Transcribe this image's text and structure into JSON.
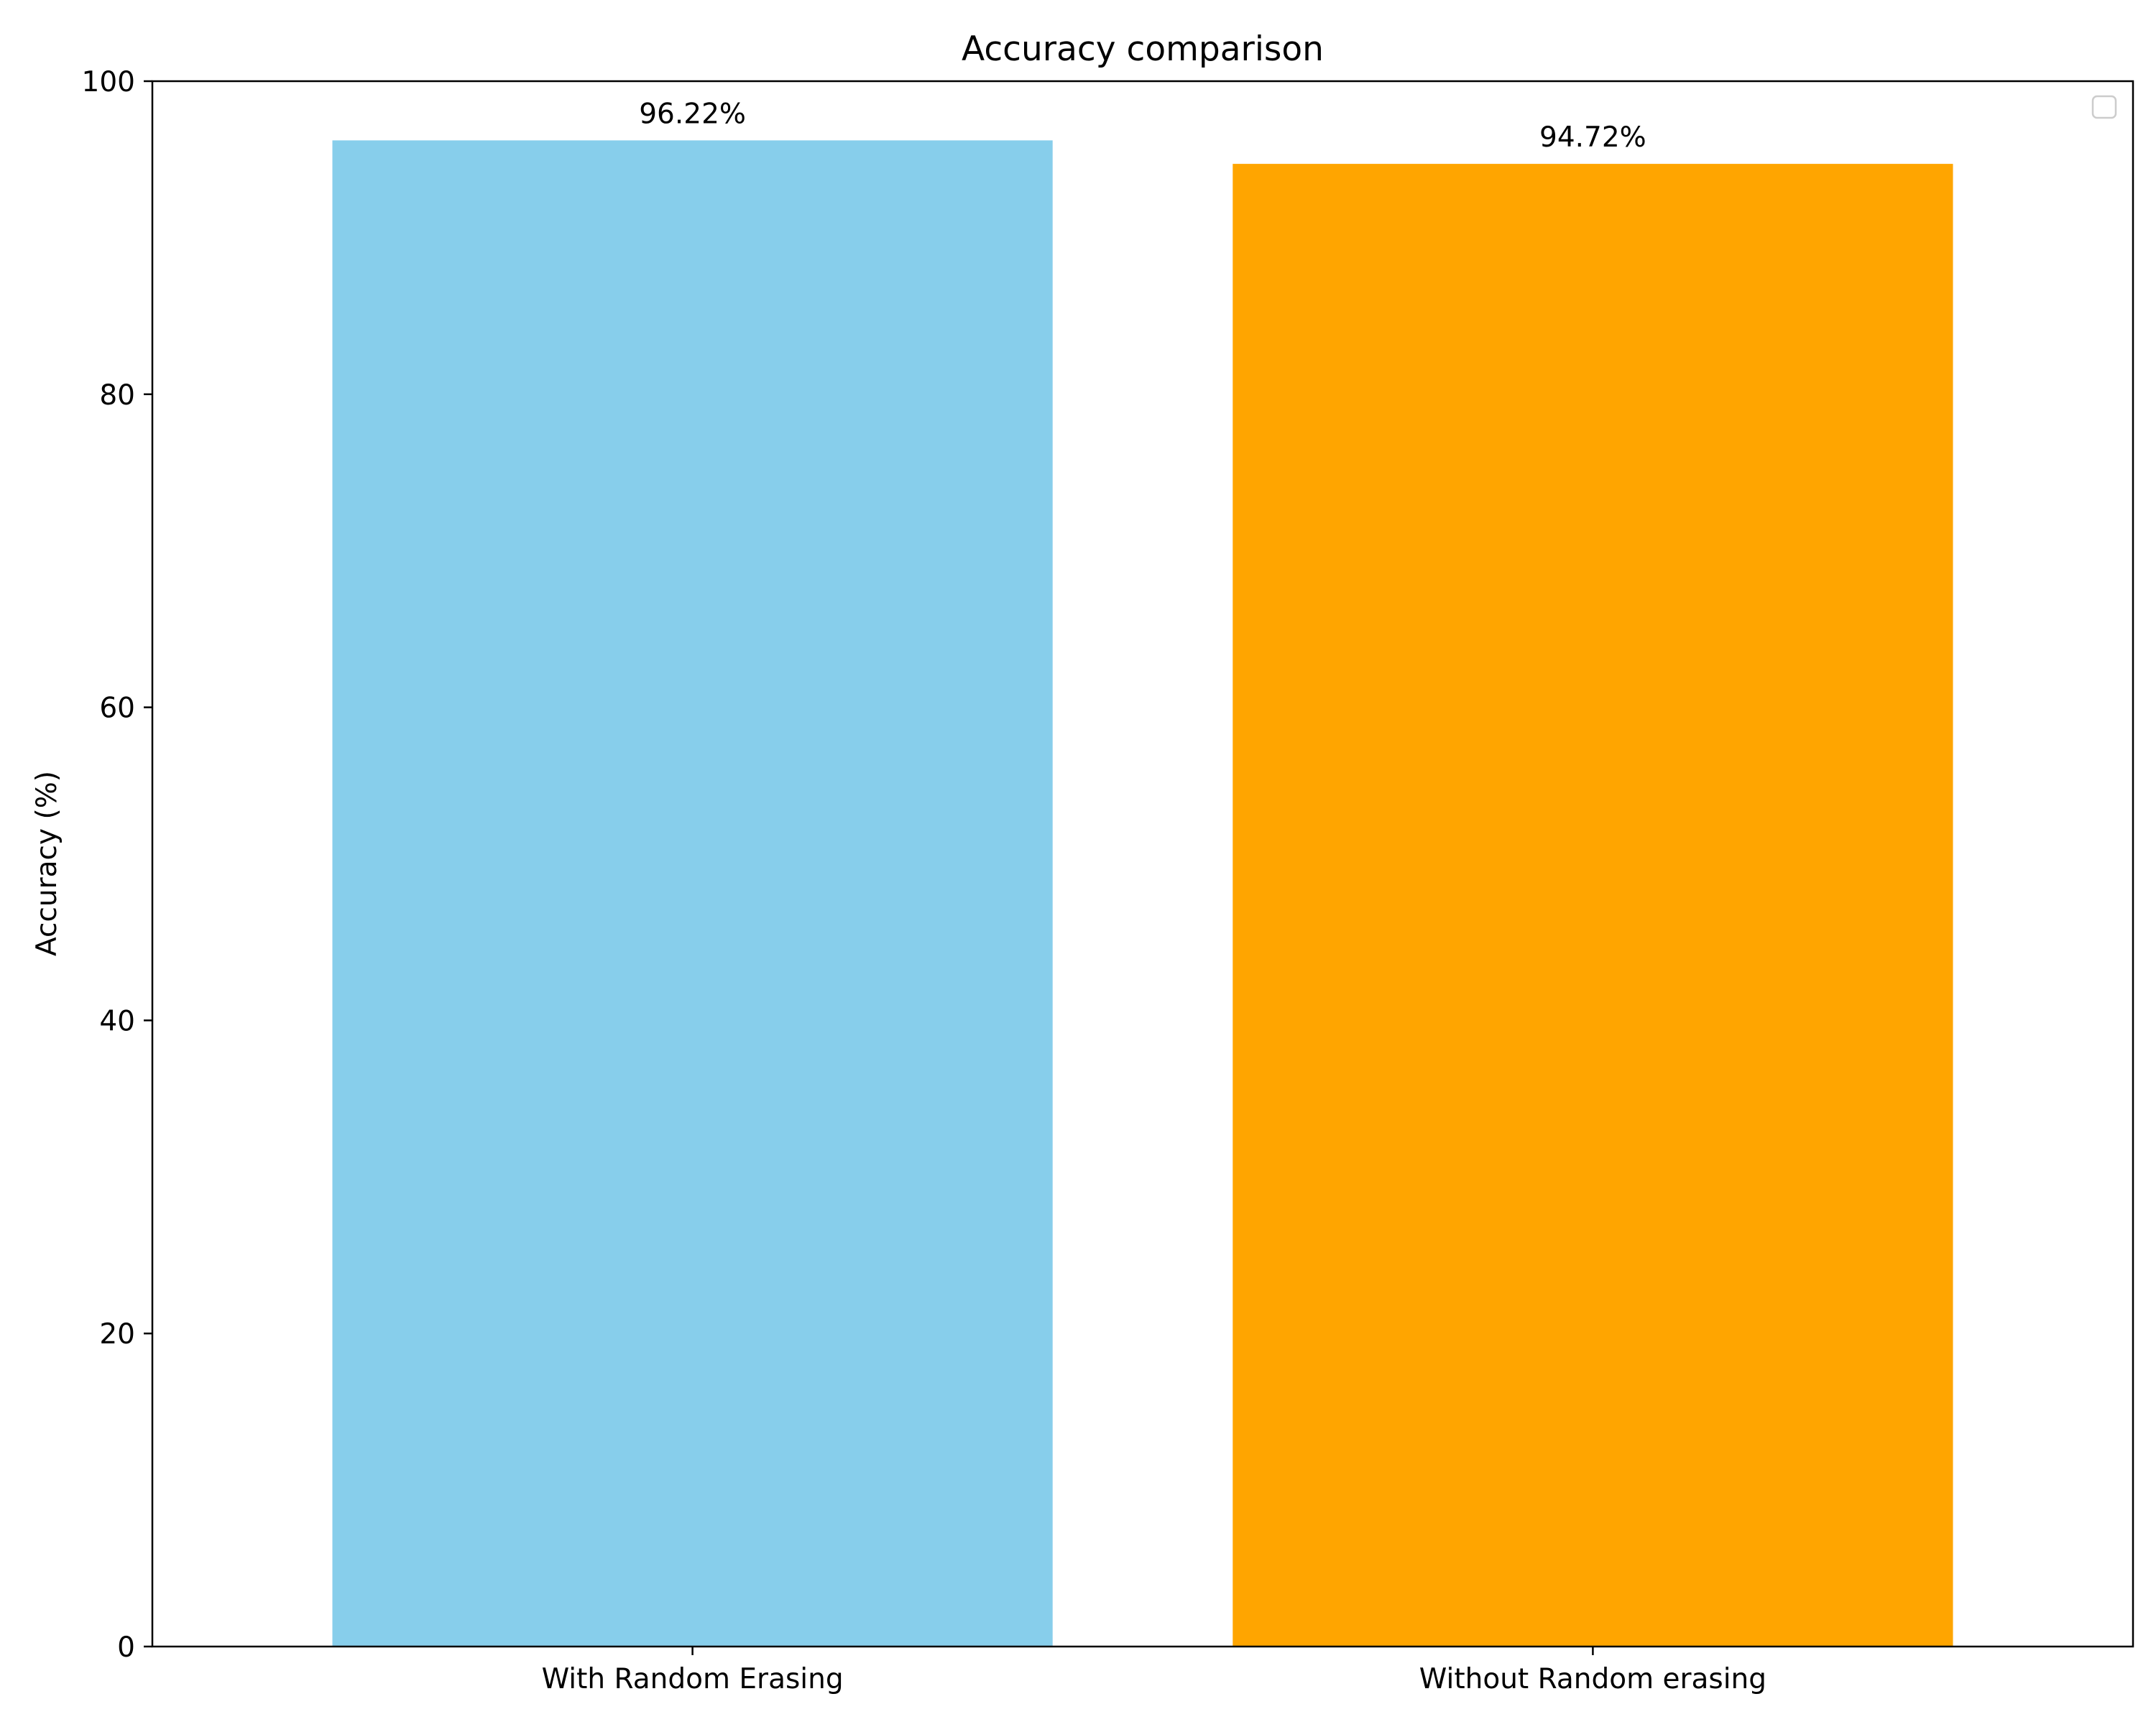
{
  "chart_data": {
    "type": "bar",
    "title": "Accuracy comparison",
    "xlabel": "",
    "ylabel": "Accuracy (%)",
    "ylim": [
      0,
      100
    ],
    "yticks": [
      0,
      20,
      40,
      60,
      80,
      100
    ],
    "categories": [
      "With Random Erasing",
      "Without Random erasing"
    ],
    "values": [
      96.22,
      94.72
    ],
    "value_labels": [
      "96.22%",
      "94.72%"
    ],
    "colors": [
      "#87CEEB",
      "#FFA500"
    ],
    "grid": false,
    "legend": {
      "placement": "top-right",
      "entries": []
    }
  }
}
